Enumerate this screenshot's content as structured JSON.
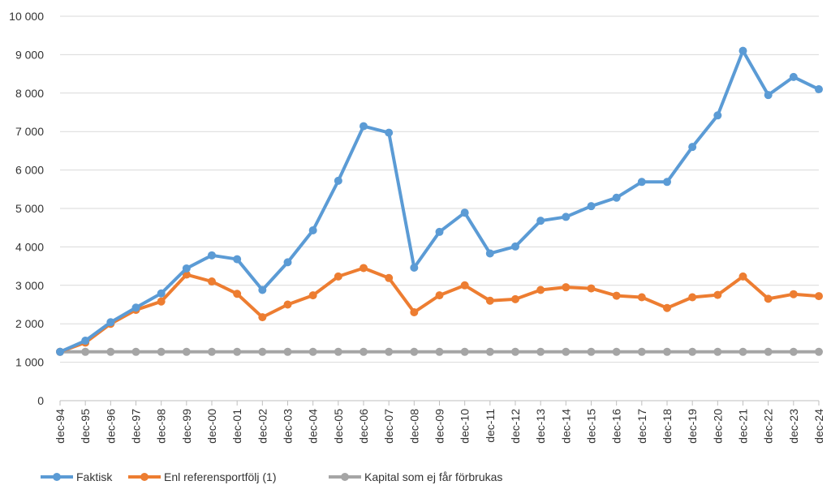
{
  "chart_data": {
    "type": "line",
    "title": "",
    "xlabel": "",
    "ylabel": "",
    "ylim": [
      0,
      10000
    ],
    "y_ticks": [
      0,
      1000,
      2000,
      3000,
      4000,
      5000,
      6000,
      7000,
      8000,
      9000,
      10000
    ],
    "y_tick_labels": [
      "0",
      "1 000",
      "2 000",
      "3 000",
      "4 000",
      "5 000",
      "6 000",
      "7 000",
      "8 000",
      "9 000",
      "10 000"
    ],
    "grid": true,
    "legend_position": "bottom-left",
    "categories": [
      "dec-94",
      "dec-95",
      "dec-96",
      "dec-97",
      "dec-98",
      "dec-99",
      "dec-00",
      "dec-01",
      "dec-02",
      "dec-03",
      "dec-04",
      "dec-05",
      "dec-06",
      "dec-07",
      "dec-08",
      "dec-09",
      "dec-10",
      "dec-11",
      "dec-12",
      "dec-13",
      "dec-14",
      "dec-15",
      "dec-16",
      "dec-17",
      "dec-18",
      "dec-19",
      "dec-20",
      "dec-21",
      "dec-22",
      "dec-23",
      "dec-24"
    ],
    "series": [
      {
        "name": "Faktisk",
        "color": "#5b9bd5",
        "values": [
          1270,
          1560,
          2040,
          2420,
          2790,
          3440,
          3780,
          3680,
          2880,
          3600,
          4430,
          5720,
          7140,
          6970,
          3460,
          4390,
          4890,
          3830,
          4010,
          4680,
          4780,
          5060,
          5280,
          5690,
          5690,
          6600,
          7420,
          9100,
          7950,
          8420,
          8100
        ]
      },
      {
        "name": "Enl referensportfölj (1)",
        "color": "#ed7d31",
        "values": [
          1270,
          1510,
          2000,
          2360,
          2580,
          3280,
          3100,
          2780,
          2170,
          2500,
          2740,
          3230,
          3450,
          3190,
          2300,
          2740,
          3000,
          2600,
          2640,
          2880,
          2950,
          2920,
          2730,
          2690,
          2410,
          2690,
          2750,
          3230,
          2650,
          2770,
          2720
        ]
      },
      {
        "name": "Kapital som ej får förbrukas",
        "color": "#a5a5a5",
        "values": [
          1270,
          1270,
          1270,
          1270,
          1270,
          1270,
          1270,
          1270,
          1270,
          1270,
          1270,
          1270,
          1270,
          1270,
          1270,
          1270,
          1270,
          1270,
          1270,
          1270,
          1270,
          1270,
          1270,
          1270,
          1270,
          1270,
          1270,
          1270,
          1270,
          1270,
          1270
        ]
      }
    ]
  }
}
